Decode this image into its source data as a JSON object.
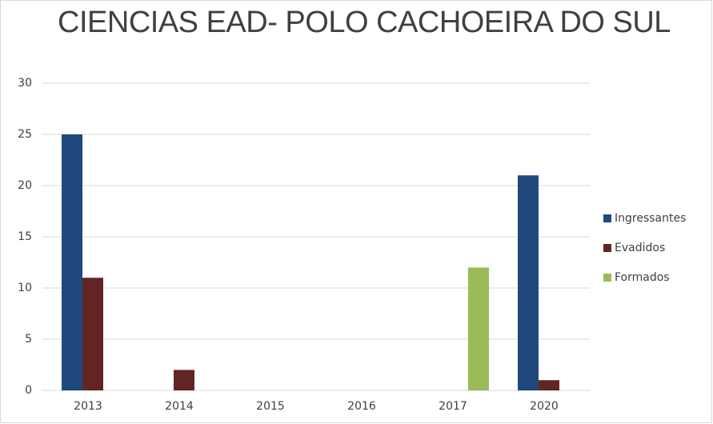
{
  "chart_data": {
    "type": "bar",
    "title": "CIENCIAS  EAD- POLO CACHOEIRA DO SUL",
    "categories": [
      "2013",
      "2014",
      "2015",
      "2016",
      "2017",
      "2020"
    ],
    "series": [
      {
        "name": "Ingressantes",
        "color": "#1f497d",
        "values": [
          25,
          0,
          0,
          0,
          0,
          21
        ]
      },
      {
        "name": "Evadidos",
        "color": "#632523",
        "values": [
          11,
          2,
          0,
          0,
          0,
          1
        ]
      },
      {
        "name": "Formados",
        "color": "#9bbb59",
        "values": [
          0,
          0,
          0,
          0,
          12,
          0
        ]
      }
    ],
    "ylim": [
      0,
      30
    ],
    "yticks": [
      0,
      5,
      10,
      15,
      20,
      25,
      30
    ],
    "grid": true,
    "legend": "right"
  }
}
